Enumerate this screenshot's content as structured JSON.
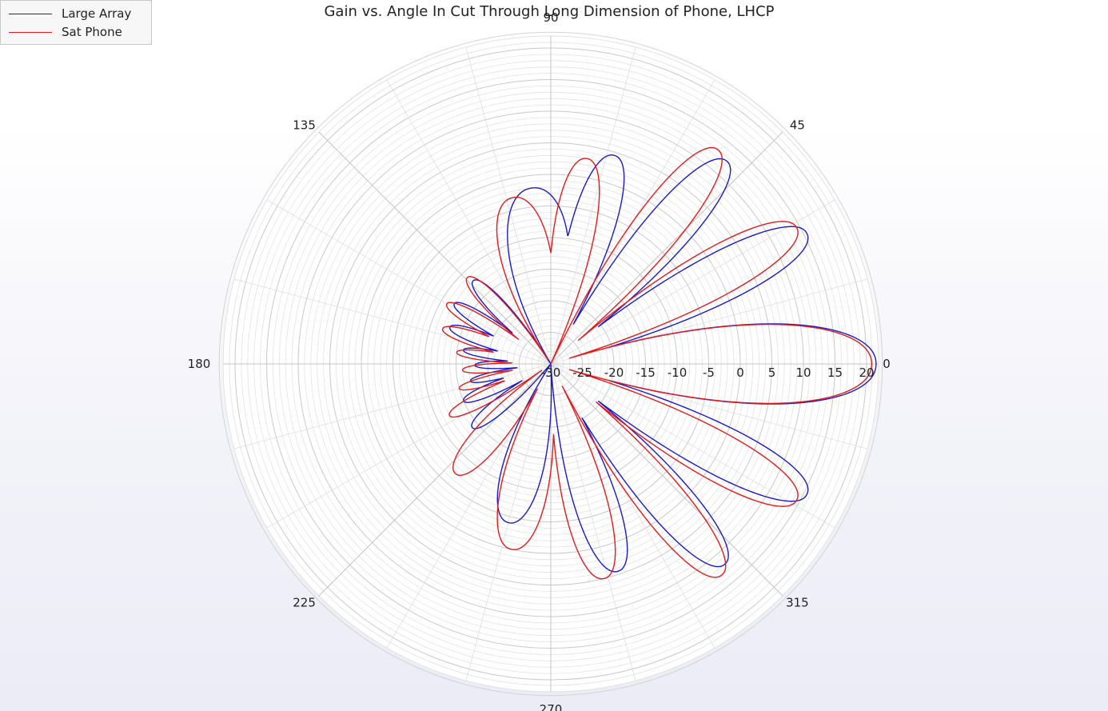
{
  "chart_data": {
    "type": "polar",
    "title": "Gain vs. Angle In Cut Through Long Dimension of Phone, LHCP",
    "theta_ticks": [
      "0",
      "45",
      "90",
      "135",
      "180",
      "225",
      "270",
      "315"
    ],
    "r_ticks": [
      "-30",
      "-25",
      "-20",
      "-15",
      "-10",
      "-5",
      "0",
      "5",
      "10",
      "15",
      "20"
    ],
    "rlim": [
      -30,
      22
    ],
    "grid": true,
    "legend_position": "top-left",
    "series": [
      {
        "name": "Large Array",
        "color": "#1a1acc",
        "lobes": [
          {
            "peak_deg": 0,
            "peak_db": 21.5,
            "half_width_deg": 10
          },
          {
            "peak_deg": 27,
            "peak_db": 15.5,
            "half_width_deg": 7
          },
          {
            "peak_deg": 49,
            "peak_db": 12.5,
            "half_width_deg": 7
          },
          {
            "peak_deg": 73,
            "peak_db": 4.5,
            "half_width_deg": 8
          },
          {
            "peak_deg": 96,
            "peak_db": -2,
            "half_width_deg": 14
          },
          {
            "peak_deg": 133,
            "peak_db": -12,
            "half_width_deg": 6
          },
          {
            "peak_deg": 148,
            "peak_db": -12,
            "half_width_deg": 5
          },
          {
            "peak_deg": 160,
            "peak_db": -13,
            "half_width_deg": 5
          },
          {
            "peak_deg": 171,
            "peak_db": -16,
            "half_width_deg": 4
          },
          {
            "peak_deg": 181,
            "peak_db": -18,
            "half_width_deg": 4
          },
          {
            "peak_deg": 192,
            "peak_db": -17,
            "half_width_deg": 4
          },
          {
            "peak_deg": 203,
            "peak_db": -15,
            "half_width_deg": 5
          },
          {
            "peak_deg": 219,
            "peak_db": -14,
            "half_width_deg": 6
          },
          {
            "peak_deg": 255,
            "peak_db": -4,
            "half_width_deg": 10
          },
          {
            "peak_deg": 288,
            "peak_db": 4.5,
            "half_width_deg": 8
          },
          {
            "peak_deg": 311,
            "peak_db": 12,
            "half_width_deg": 7
          },
          {
            "peak_deg": 333,
            "peak_db": 15.5,
            "half_width_deg": 7
          }
        ]
      },
      {
        "name": "Sat Phone",
        "color": "#e31a1a",
        "lobes": [
          {
            "peak_deg": 0,
            "peak_db": 20.8,
            "half_width_deg": 10
          },
          {
            "peak_deg": 29,
            "peak_db": 14.5,
            "half_width_deg": 7
          },
          {
            "peak_deg": 52,
            "peak_db": 13,
            "half_width_deg": 7
          },
          {
            "peak_deg": 80,
            "peak_db": 3,
            "half_width_deg": 8
          },
          {
            "peak_deg": 103,
            "peak_db": -3,
            "half_width_deg": 12
          },
          {
            "peak_deg": 134,
            "peak_db": -11,
            "half_width_deg": 6
          },
          {
            "peak_deg": 150,
            "peak_db": -11,
            "half_width_deg": 5
          },
          {
            "peak_deg": 162,
            "peak_db": -12,
            "half_width_deg": 5
          },
          {
            "peak_deg": 173,
            "peak_db": -15,
            "half_width_deg": 4
          },
          {
            "peak_deg": 184,
            "peak_db": -16,
            "half_width_deg": 4
          },
          {
            "peak_deg": 195,
            "peak_db": -15,
            "half_width_deg": 4
          },
          {
            "peak_deg": 207,
            "peak_db": -12,
            "half_width_deg": 5
          },
          {
            "peak_deg": 229,
            "peak_db": -7,
            "half_width_deg": 8
          },
          {
            "peak_deg": 258,
            "peak_db": 0,
            "half_width_deg": 10
          },
          {
            "peak_deg": 284,
            "peak_db": 5,
            "half_width_deg": 8
          },
          {
            "peak_deg": 309,
            "peak_db": 13,
            "half_width_deg": 7
          },
          {
            "peak_deg": 331,
            "peak_db": 14.5,
            "half_width_deg": 7
          }
        ]
      }
    ]
  }
}
